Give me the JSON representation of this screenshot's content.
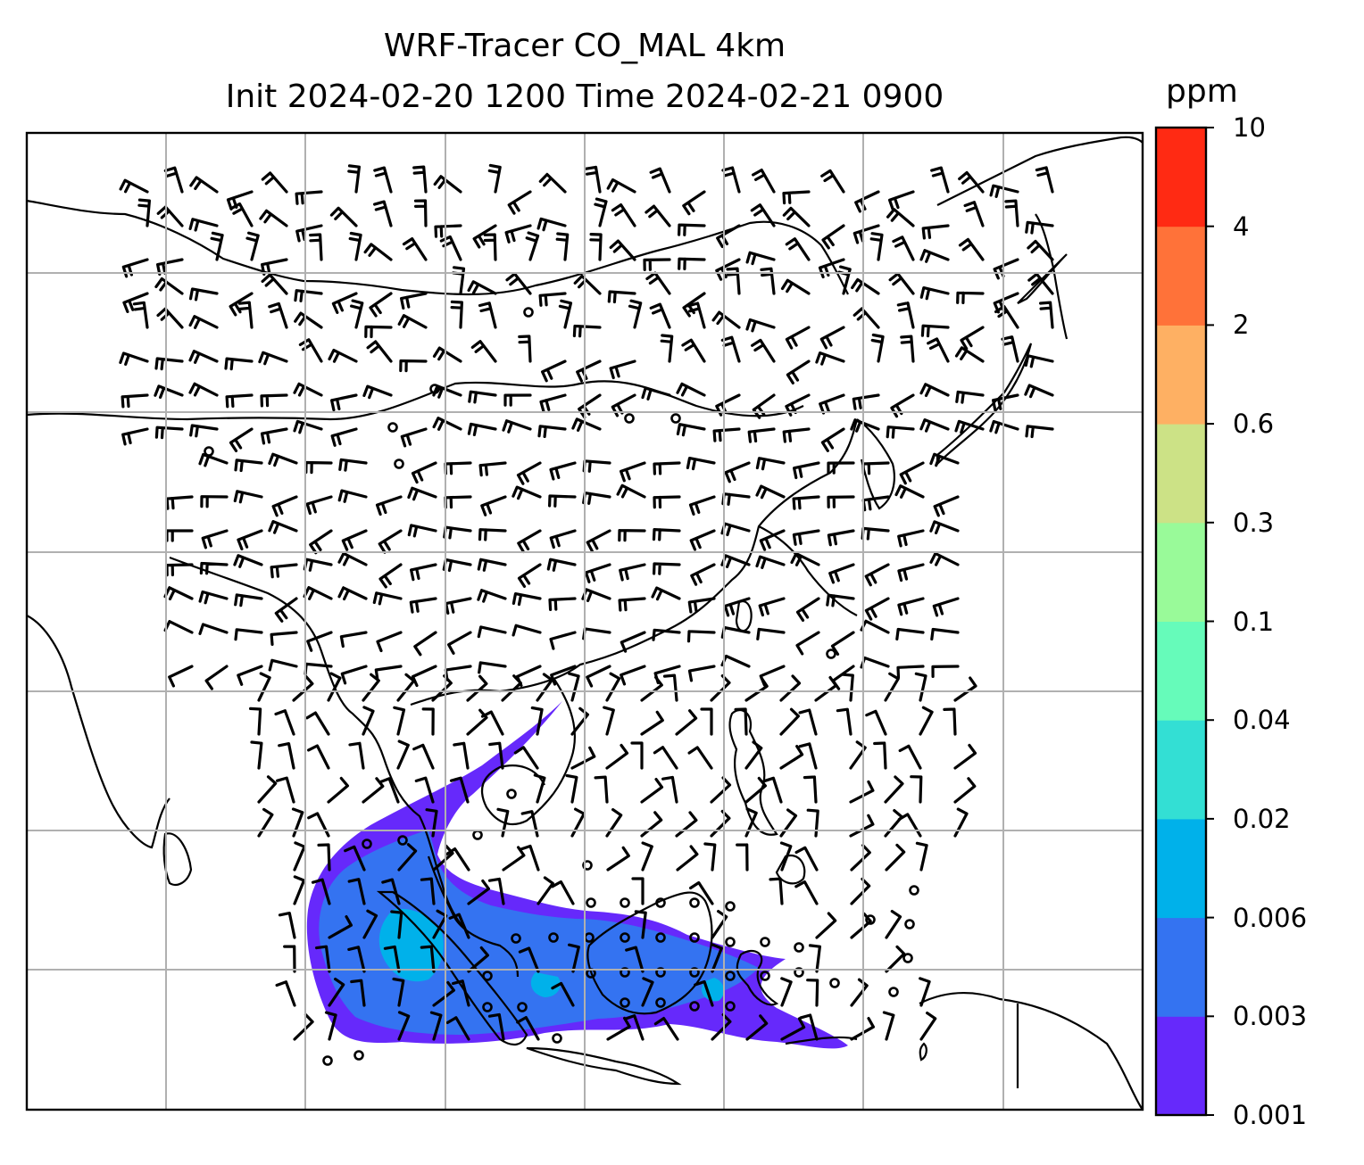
{
  "title": {
    "line1": "WRF-Tracer CO_MAL 4km",
    "line2": "Init 2024-02-20 1200 Time 2024-02-21 0900"
  },
  "colorbar": {
    "unit": "ppm",
    "levels": [
      "0.001",
      "0.003",
      "0.006",
      "0.02",
      "0.04",
      "0.1",
      "0.3",
      "0.6",
      "2",
      "4",
      "10"
    ],
    "colors": [
      "#6629fb",
      "#3473f1",
      "#00b1ea",
      "#33dfd4",
      "#66fbba",
      "#99fa99",
      "#cce286",
      "#feb063",
      "#ff7239",
      "#ff2a13"
    ]
  },
  "map": {
    "frame_color": "#000000",
    "grid_color": "#b0b0b0",
    "coastline_color": "#000000",
    "wind_barb_color": "#000000"
  }
}
